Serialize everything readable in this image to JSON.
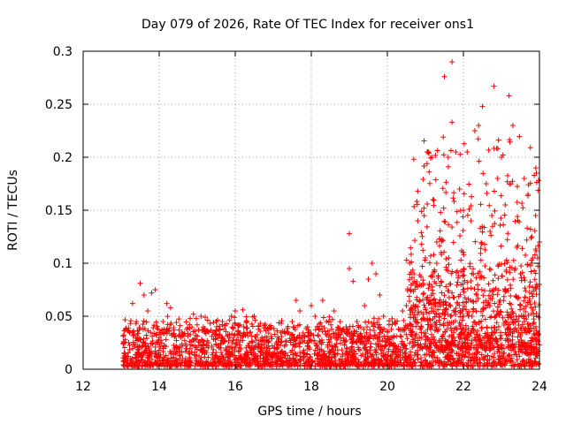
{
  "chart_data": {
    "type": "scatter",
    "title": "Day 079 of 2026, Rate Of TEC Index for receiver ons1",
    "xlabel": "GPS time / hours",
    "ylabel": "ROTI / TECUs",
    "xlim": [
      12,
      24
    ],
    "ylim": [
      0,
      0.3
    ],
    "x_ticks": [
      "12",
      "14",
      "16",
      "18",
      "20",
      "22",
      "24"
    ],
    "y_ticks": [
      "0",
      "0.05",
      "0.1",
      "0.15",
      "0.2",
      "0.25",
      "0.3"
    ],
    "grid": true,
    "marker": "plus",
    "color": "#ff0000",
    "series": [
      {
        "name": "ROTI",
        "points": [
          [
            13.1,
            0.015
          ],
          [
            13.2,
            0.025
          ],
          [
            13.3,
            0.035
          ],
          [
            13.3,
            0.062
          ],
          [
            13.4,
            0.045
          ],
          [
            13.5,
            0.081
          ],
          [
            13.5,
            0.028
          ],
          [
            13.6,
            0.07
          ],
          [
            13.7,
            0.055
          ],
          [
            13.8,
            0.072
          ],
          [
            13.9,
            0.075
          ],
          [
            14.0,
            0.03
          ],
          [
            14.1,
            0.045
          ],
          [
            14.2,
            0.062
          ],
          [
            14.3,
            0.058
          ],
          [
            14.4,
            0.02
          ],
          [
            14.6,
            0.035
          ],
          [
            14.8,
            0.042
          ],
          [
            14.9,
            0.052
          ],
          [
            15.1,
            0.05
          ],
          [
            15.3,
            0.025
          ],
          [
            15.5,
            0.045
          ],
          [
            15.7,
            0.038
          ],
          [
            15.9,
            0.05
          ],
          [
            16.0,
            0.055
          ],
          [
            16.2,
            0.056
          ],
          [
            16.4,
            0.035
          ],
          [
            16.5,
            0.05
          ],
          [
            16.7,
            0.03
          ],
          [
            16.9,
            0.04
          ],
          [
            17.1,
            0.02
          ],
          [
            17.3,
            0.035
          ],
          [
            17.5,
            0.045
          ],
          [
            17.6,
            0.065
          ],
          [
            17.7,
            0.055
          ],
          [
            17.9,
            0.04
          ],
          [
            18.0,
            0.06
          ],
          [
            18.1,
            0.05
          ],
          [
            18.3,
            0.065
          ],
          [
            18.4,
            0.045
          ],
          [
            18.6,
            0.055
          ],
          [
            18.8,
            0.035
          ],
          [
            19.0,
            0.128
          ],
          [
            19.0,
            0.095
          ],
          [
            19.1,
            0.083
          ],
          [
            19.2,
            0.045
          ],
          [
            19.4,
            0.06
          ],
          [
            19.5,
            0.085
          ],
          [
            19.6,
            0.1
          ],
          [
            19.7,
            0.09
          ],
          [
            19.8,
            0.07
          ],
          [
            19.9,
            0.05
          ],
          [
            20.0,
            0.035
          ],
          [
            20.2,
            0.045
          ],
          [
            20.4,
            0.055
          ],
          [
            20.5,
            0.06
          ],
          [
            20.6,
            0.075
          ],
          [
            20.7,
            0.09
          ],
          [
            20.8,
            0.14
          ],
          [
            20.8,
            0.168
          ],
          [
            20.9,
            0.118
          ],
          [
            21.0,
            0.105
          ],
          [
            21.1,
            0.186
          ],
          [
            21.2,
            0.16
          ],
          [
            21.3,
            0.12
          ],
          [
            21.4,
            0.148
          ],
          [
            21.5,
            0.276
          ],
          [
            21.6,
            0.2
          ],
          [
            21.7,
            0.29
          ],
          [
            21.7,
            0.233
          ],
          [
            21.8,
            0.205
          ],
          [
            21.9,
            0.17
          ],
          [
            22.0,
            0.15
          ],
          [
            22.1,
            0.205
          ],
          [
            22.2,
            0.14
          ],
          [
            22.3,
            0.225
          ],
          [
            22.4,
            0.23
          ],
          [
            22.5,
            0.248
          ],
          [
            22.6,
            0.175
          ],
          [
            22.7,
            0.13
          ],
          [
            22.8,
            0.267
          ],
          [
            22.9,
            0.18
          ],
          [
            23.0,
            0.2
          ],
          [
            23.1,
            0.155
          ],
          [
            23.2,
            0.258
          ],
          [
            23.3,
            0.23
          ],
          [
            23.4,
            0.115
          ],
          [
            23.5,
            0.09
          ],
          [
            23.6,
            0.18
          ],
          [
            23.7,
            0.165
          ],
          [
            23.8,
            0.125
          ],
          [
            23.9,
            0.145
          ],
          [
            24.0,
            0.12
          ],
          [
            24.0,
            0.08
          ],
          [
            23.95,
            0.105
          ],
          [
            21.3,
            0.1
          ],
          [
            22.0,
            0.05
          ],
          [
            22.7,
            0.06
          ],
          [
            23.1,
            0.075
          ],
          [
            23.6,
            0.045
          ]
        ]
      }
    ]
  }
}
